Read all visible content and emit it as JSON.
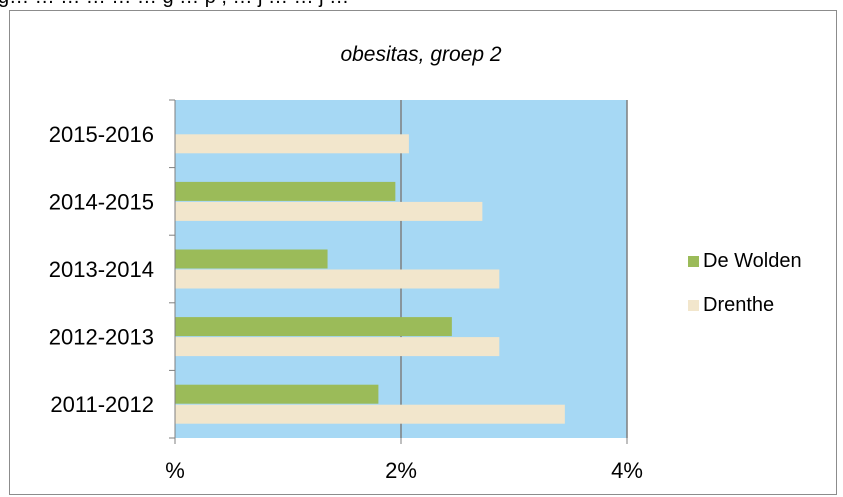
{
  "header_fragment": "g… … … … … … g … p , … j … … j …",
  "chart_data": {
    "type": "bar",
    "orientation": "horizontal",
    "title": "obesitas, groep 2",
    "categories": [
      "2011-2012",
      "2012-2013",
      "2013-2014",
      "2014-2015",
      "2015-2016"
    ],
    "series": [
      {
        "name": "De Wolden",
        "color": "#9BBB59",
        "values": [
          1.8,
          2.45,
          1.35,
          1.95,
          null
        ]
      },
      {
        "name": "Drenthe",
        "color": "#F2E6CC",
        "values": [
          3.45,
          2.87,
          2.87,
          2.72,
          2.07
        ]
      }
    ],
    "xlim": [
      0,
      4
    ],
    "x_ticks": [
      0,
      2,
      4
    ],
    "x_tick_labels": [
      "%",
      "2%",
      "4%"
    ],
    "grid": "vertical",
    "legend_position": "right",
    "plot_background": "#A6D8F4",
    "gridline_color": "#7F7F7F"
  }
}
